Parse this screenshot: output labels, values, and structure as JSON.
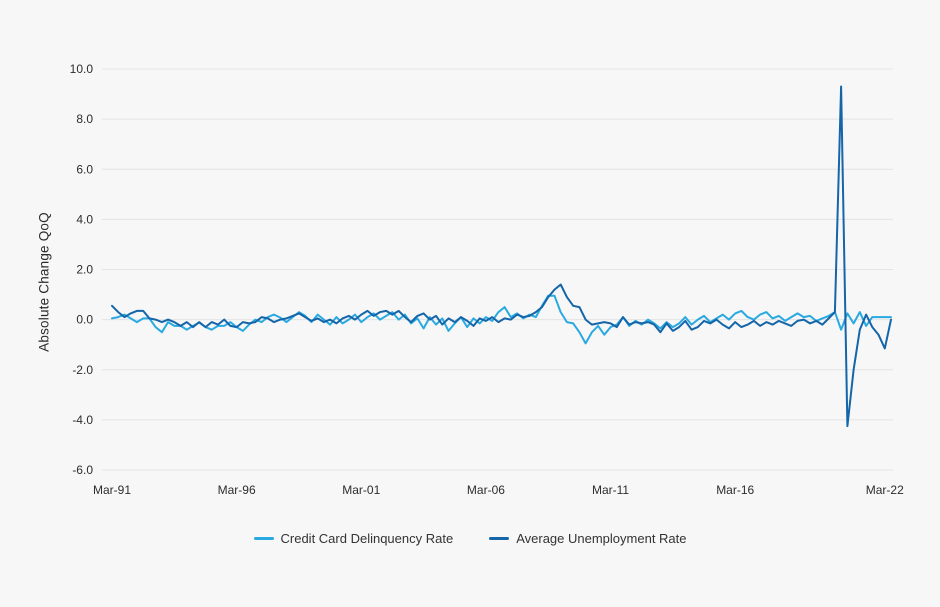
{
  "chart_data": {
    "type": "line",
    "title": "",
    "ylabel": "Absolute Change QoQ",
    "xlabel": "",
    "x_frequency": "quarterly",
    "x_start": "Mar-91",
    "x_end": "Jun-22",
    "x_tick_labels": [
      "Mar-91",
      "Mar-96",
      "Mar-01",
      "Mar-06",
      "Mar-11",
      "Mar-16",
      "Mar-22"
    ],
    "x_tick_indices": [
      0,
      20,
      40,
      60,
      80,
      100,
      124
    ],
    "y_tick_labels": [
      "10.0",
      "8.0",
      "6.0",
      "4.0",
      "2.0",
      "0.0",
      "-2.0",
      "-4.0",
      "-6.0"
    ],
    "y_tick_values": [
      10,
      8,
      6,
      4,
      2,
      0,
      -2,
      -4,
      -6
    ],
    "ylim": [
      -6,
      10
    ],
    "grid": "horizontal-only",
    "legend_position": "bottom-center",
    "colors": {
      "background": "#f7f7f7",
      "gridline": "#e4e4e4",
      "text": "#2d2d2d"
    },
    "series": [
      {
        "name": "Credit Card Delinquency Rate",
        "color": "#29a9e1",
        "values": [
          0.05,
          0.1,
          0.2,
          0.05,
          -0.1,
          0.05,
          0.05,
          -0.3,
          -0.5,
          -0.1,
          -0.25,
          -0.25,
          -0.4,
          -0.25,
          -0.12,
          -0.3,
          -0.4,
          -0.25,
          -0.25,
          -0.1,
          -0.3,
          -0.45,
          -0.2,
          0.0,
          -0.1,
          0.1,
          0.2,
          0.08,
          -0.1,
          0.1,
          0.3,
          0.15,
          -0.1,
          0.2,
          0.0,
          -0.2,
          0.1,
          -0.15,
          0.0,
          0.2,
          -0.1,
          0.1,
          0.25,
          0.0,
          0.15,
          0.3,
          0.0,
          0.2,
          -0.15,
          0.05,
          -0.35,
          0.1,
          -0.2,
          0.05,
          -0.45,
          -0.15,
          0.1,
          -0.3,
          0.05,
          -0.15,
          0.1,
          -0.05,
          0.3,
          0.5,
          0.1,
          0.25,
          0.05,
          0.2,
          0.1,
          0.55,
          0.95,
          0.95,
          0.3,
          -0.1,
          -0.15,
          -0.5,
          -0.95,
          -0.5,
          -0.25,
          -0.6,
          -0.3,
          -0.2,
          0.1,
          -0.25,
          -0.05,
          -0.2,
          0.0,
          -0.15,
          -0.35,
          -0.1,
          -0.3,
          -0.15,
          0.1,
          -0.2,
          0.0,
          0.15,
          -0.1,
          0.05,
          0.2,
          0.0,
          0.25,
          0.35,
          0.1,
          0.0,
          0.2,
          0.3,
          0.05,
          0.15,
          -0.05,
          0.1,
          0.25,
          0.1,
          0.15,
          -0.05,
          0.05,
          0.15,
          0.3,
          -0.4,
          0.25,
          -0.15,
          0.3,
          -0.25,
          0.1,
          0.1,
          0.1,
          0.1
        ]
      },
      {
        "name": "Average Unemployment Rate",
        "color": "#1565a9",
        "values": [
          0.55,
          0.3,
          0.1,
          0.25,
          0.35,
          0.35,
          0.05,
          0.0,
          -0.1,
          0.0,
          -0.1,
          -0.25,
          -0.1,
          -0.3,
          -0.1,
          -0.3,
          -0.1,
          -0.2,
          0.0,
          -0.25,
          -0.3,
          -0.1,
          -0.15,
          -0.1,
          0.1,
          0.05,
          -0.1,
          0.0,
          0.05,
          0.15,
          0.25,
          0.1,
          -0.05,
          0.05,
          -0.1,
          0.0,
          -0.15,
          0.05,
          0.15,
          0.0,
          0.2,
          0.35,
          0.15,
          0.3,
          0.35,
          0.2,
          0.35,
          0.1,
          -0.1,
          0.15,
          0.25,
          0.0,
          0.15,
          -0.2,
          0.05,
          -0.1,
          0.1,
          -0.05,
          -0.25,
          0.05,
          -0.05,
          0.1,
          -0.1,
          0.05,
          0.0,
          0.2,
          0.1,
          0.15,
          0.3,
          0.5,
          0.9,
          1.2,
          1.4,
          0.9,
          0.55,
          0.5,
          0.0,
          -0.2,
          -0.15,
          -0.1,
          -0.15,
          -0.3,
          0.1,
          -0.2,
          -0.1,
          -0.15,
          -0.1,
          -0.2,
          -0.5,
          -0.15,
          -0.45,
          -0.3,
          -0.05,
          -0.4,
          -0.3,
          -0.05,
          -0.15,
          0.0,
          -0.2,
          -0.35,
          -0.1,
          -0.3,
          -0.2,
          -0.05,
          -0.25,
          -0.1,
          -0.2,
          -0.05,
          -0.15,
          -0.25,
          -0.05,
          0.0,
          -0.15,
          -0.05,
          -0.2,
          0.05,
          0.3,
          9.3,
          -4.25,
          -2.0,
          -0.4,
          0.2,
          -0.3,
          -0.6,
          -1.15,
          0.0
        ]
      }
    ]
  }
}
